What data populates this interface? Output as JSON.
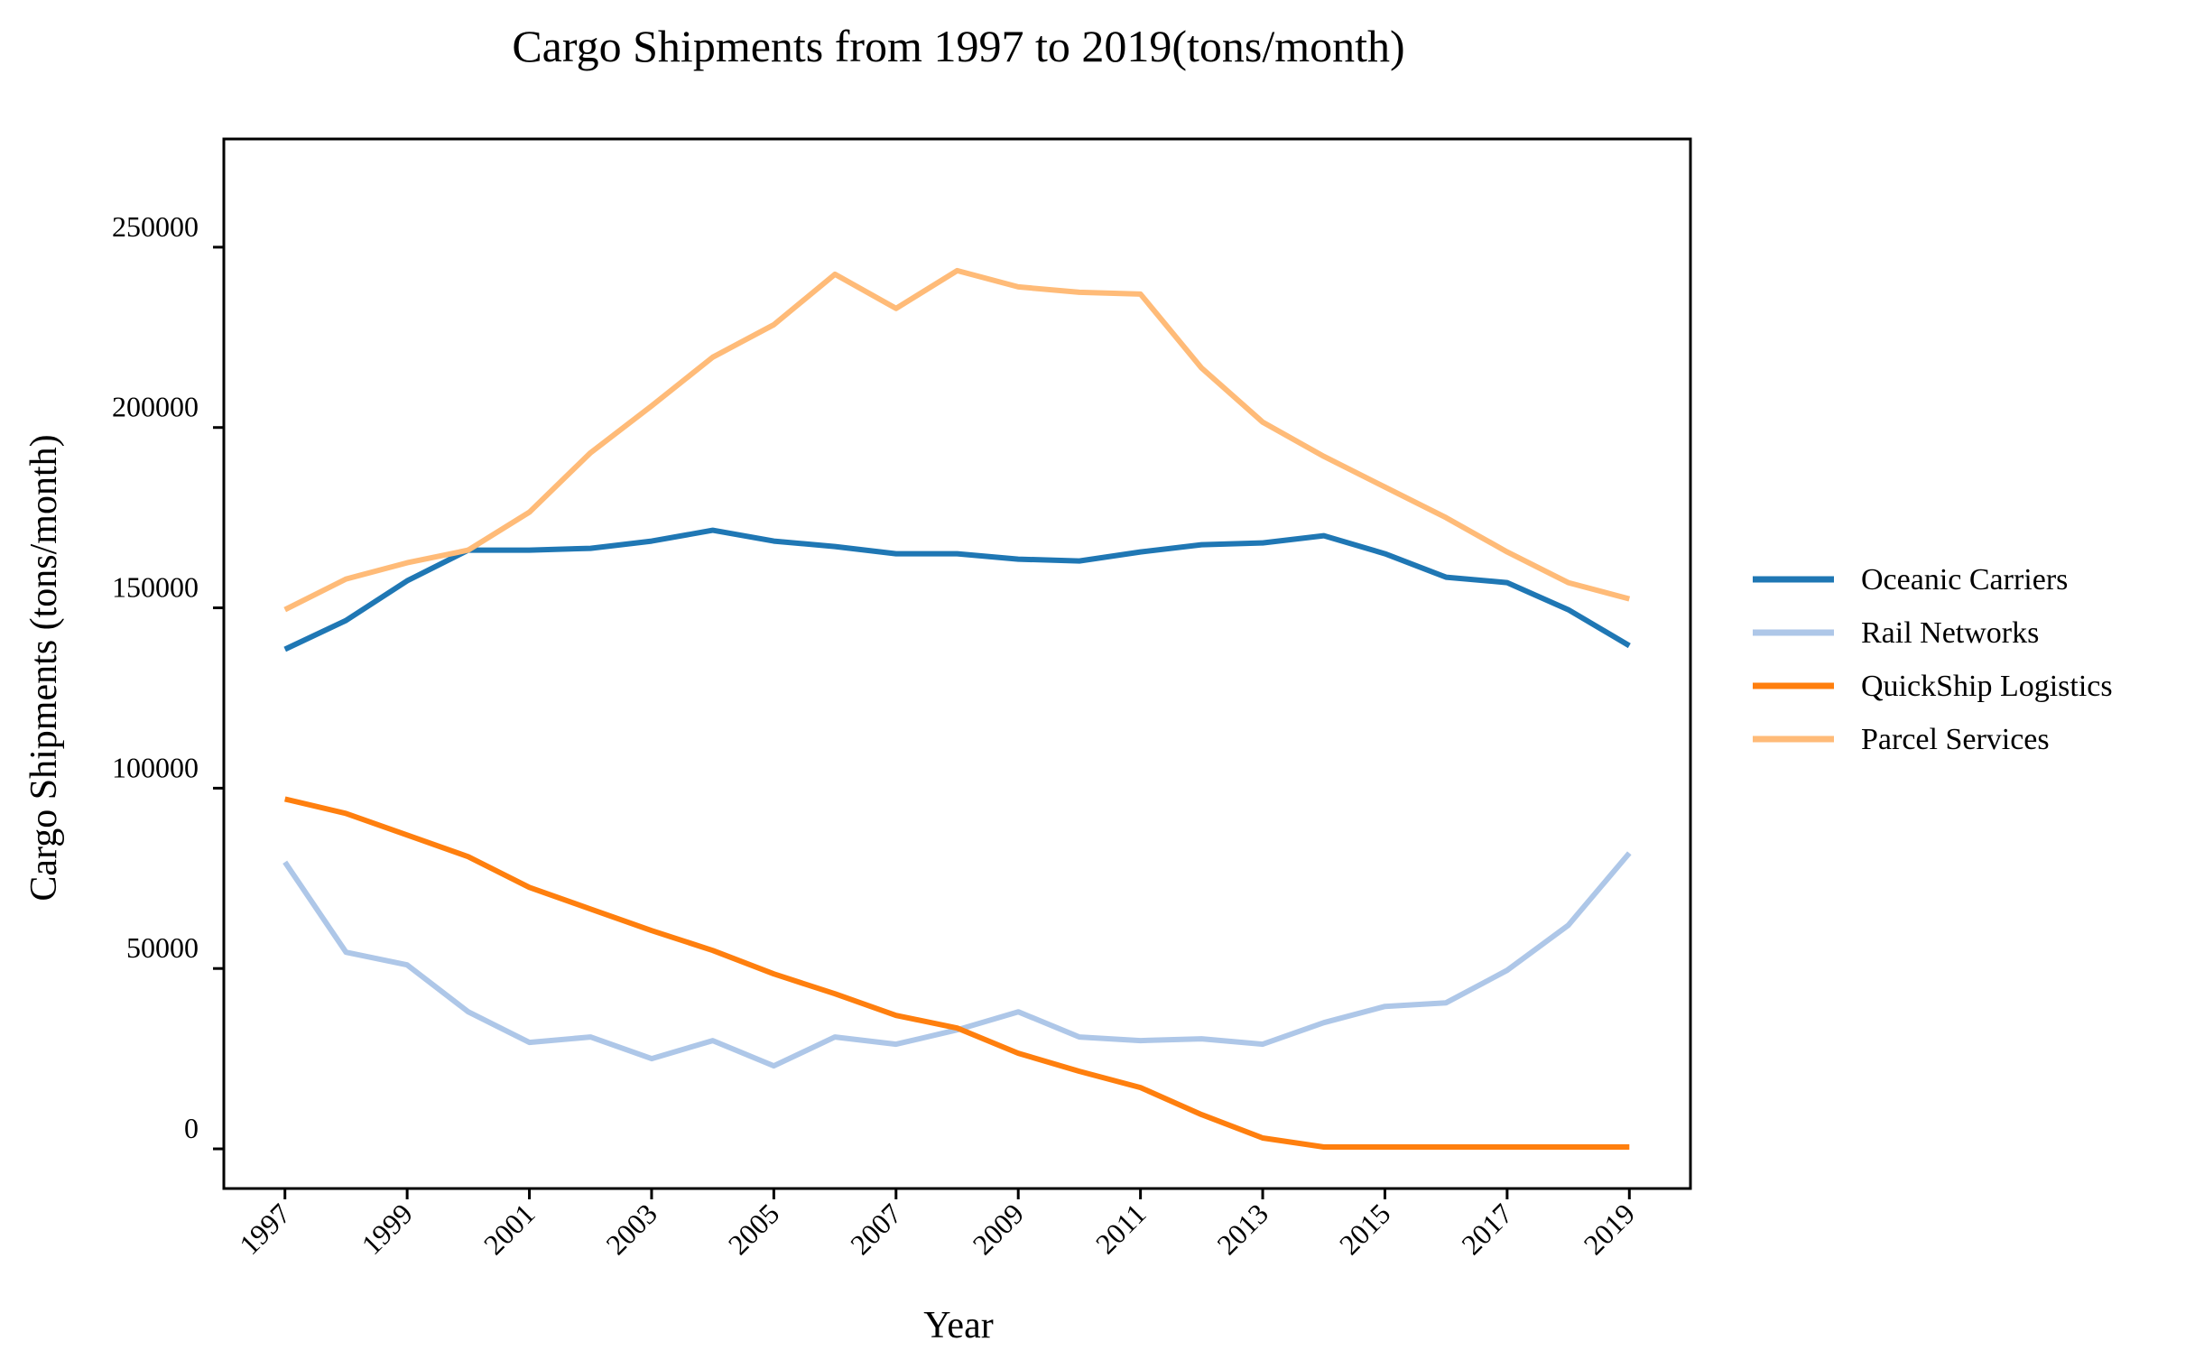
{
  "chart_data": {
    "type": "line",
    "title": "Cargo Shipments from 1997 to 2019(tons/month)",
    "xlabel": "Year",
    "ylabel": "Cargo Shipments (tons/month)",
    "x": [
      1997,
      1998,
      1999,
      2000,
      2001,
      2002,
      2003,
      2004,
      2005,
      2006,
      2007,
      2008,
      2009,
      2010,
      2011,
      2012,
      2013,
      2014,
      2015,
      2016,
      2017,
      2018,
      2019
    ],
    "x_ticks": [
      "1997",
      "1999",
      "2001",
      "2003",
      "2005",
      "2007",
      "2009",
      "2011",
      "2013",
      "2015",
      "2017",
      "2019"
    ],
    "xlim": [
      1996,
      2020
    ],
    "y_ticks": [
      "0",
      "50000",
      "100000",
      "150000",
      "200000",
      "250000"
    ],
    "ylim": [
      -11000,
      280000
    ],
    "grid": false,
    "legend_position": "right",
    "series": [
      {
        "name": "Oceanic Carriers",
        "color": "#1f77b4",
        "values": [
          138500,
          146500,
          157500,
          166000,
          166000,
          166500,
          168500,
          171500,
          168500,
          167000,
          165000,
          165000,
          163500,
          163000,
          165500,
          167500,
          168000,
          170000,
          165000,
          158500,
          157000,
          149500,
          139500
        ]
      },
      {
        "name": "Rail Networks",
        "color": "#aec7e8",
        "values": [
          79500,
          54500,
          51000,
          38000,
          29500,
          31000,
          25000,
          30000,
          23000,
          31000,
          29000,
          33000,
          38000,
          31000,
          30000,
          30500,
          29000,
          35000,
          39500,
          40500,
          49500,
          62000,
          82000
        ]
      },
      {
        "name": "QuickShip Logistics",
        "color": "#ff7f0e",
        "values": [
          97000,
          93000,
          87000,
          81000,
          72500,
          66500,
          60500,
          55000,
          48500,
          43000,
          37000,
          33500,
          26500,
          21500,
          17000,
          9500,
          3000,
          500,
          500,
          500,
          500,
          500,
          500
        ]
      },
      {
        "name": "Parcel Services",
        "color": "#ffbb78",
        "values": [
          149500,
          158000,
          162500,
          166000,
          176500,
          193000,
          206000,
          219500,
          228500,
          242500,
          233000,
          243500,
          239000,
          237500,
          237000,
          216500,
          201500,
          192000,
          183500,
          175000,
          165500,
          157000,
          152500
        ]
      }
    ]
  }
}
